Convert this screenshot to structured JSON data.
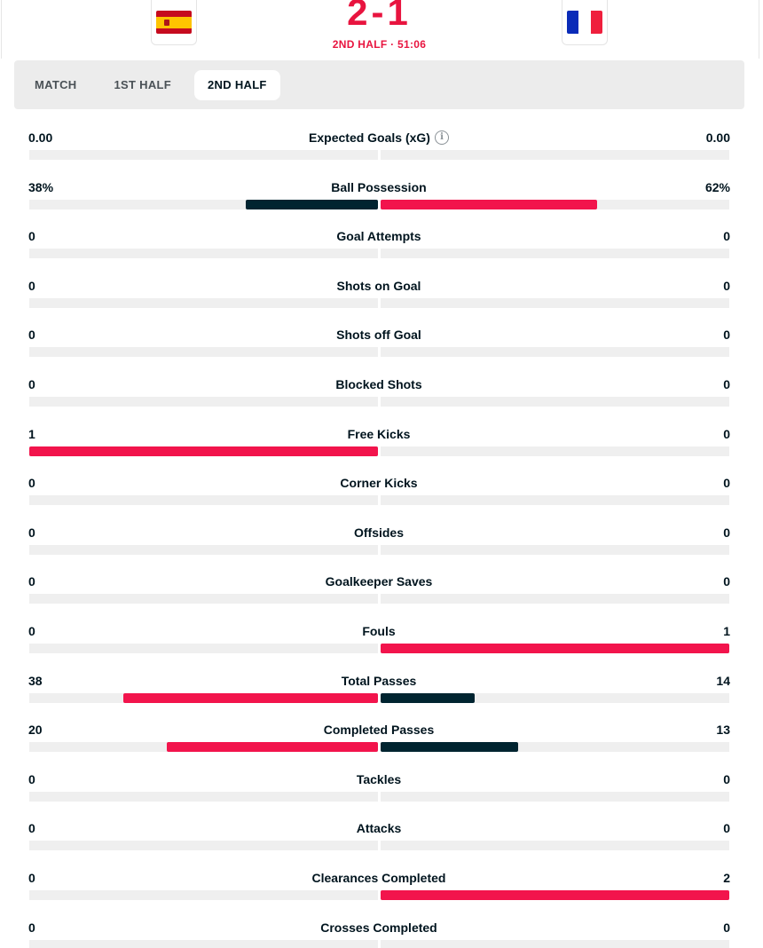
{
  "match": {
    "score": "2-1",
    "period": "2ND HALF · 51:06",
    "home_flag": "spain-flag-icon",
    "away_flag": "france-flag-icon"
  },
  "tabs": [
    {
      "label": "MATCH",
      "active": false
    },
    {
      "label": "1ST HALF",
      "active": false
    },
    {
      "label": "2ND HALF",
      "active": true
    }
  ],
  "colors": {
    "accent_red": "#f2144c",
    "dark_navy": "#002430",
    "track_grey": "#efefef"
  },
  "stats": [
    {
      "label": "Expected Goals (xG)",
      "home": "0.00",
      "away": "0.00",
      "home_share": 0,
      "away_share": 0,
      "home_color": "red",
      "away_color": "red",
      "info_icon": true
    },
    {
      "label": "Ball Possession",
      "home": "38%",
      "away": "62%",
      "home_share": 0.38,
      "away_share": 0.62,
      "home_color": "dark",
      "away_color": "red"
    },
    {
      "label": "Goal Attempts",
      "home": "0",
      "away": "0",
      "home_share": 0,
      "away_share": 0,
      "home_color": "red",
      "away_color": "red"
    },
    {
      "label": "Shots on Goal",
      "home": "0",
      "away": "0",
      "home_share": 0,
      "away_share": 0,
      "home_color": "red",
      "away_color": "red"
    },
    {
      "label": "Shots off Goal",
      "home": "0",
      "away": "0",
      "home_share": 0,
      "away_share": 0,
      "home_color": "red",
      "away_color": "red"
    },
    {
      "label": "Blocked Shots",
      "home": "0",
      "away": "0",
      "home_share": 0,
      "away_share": 0,
      "home_color": "red",
      "away_color": "red"
    },
    {
      "label": "Free Kicks",
      "home": "1",
      "away": "0",
      "home_share": 1,
      "away_share": 0,
      "home_color": "red",
      "away_color": "red"
    },
    {
      "label": "Corner Kicks",
      "home": "0",
      "away": "0",
      "home_share": 0,
      "away_share": 0,
      "home_color": "red",
      "away_color": "red"
    },
    {
      "label": "Offsides",
      "home": "0",
      "away": "0",
      "home_share": 0,
      "away_share": 0,
      "home_color": "red",
      "away_color": "red"
    },
    {
      "label": "Goalkeeper Saves",
      "home": "0",
      "away": "0",
      "home_share": 0,
      "away_share": 0,
      "home_color": "red",
      "away_color": "red"
    },
    {
      "label": "Fouls",
      "home": "0",
      "away": "1",
      "home_share": 0,
      "away_share": 1,
      "home_color": "red",
      "away_color": "red"
    },
    {
      "label": "Total Passes",
      "home": "38",
      "away": "14",
      "home_share": 0.73,
      "away_share": 0.27,
      "home_color": "red",
      "away_color": "dark"
    },
    {
      "label": "Completed Passes",
      "home": "20",
      "away": "13",
      "home_share": 0.606,
      "away_share": 0.394,
      "home_color": "red",
      "away_color": "dark"
    },
    {
      "label": "Tackles",
      "home": "0",
      "away": "0",
      "home_share": 0,
      "away_share": 0,
      "home_color": "red",
      "away_color": "red"
    },
    {
      "label": "Attacks",
      "home": "0",
      "away": "0",
      "home_share": 0,
      "away_share": 0,
      "home_color": "red",
      "away_color": "red"
    },
    {
      "label": "Clearances Completed",
      "home": "0",
      "away": "2",
      "home_share": 0,
      "away_share": 1,
      "home_color": "red",
      "away_color": "red"
    },
    {
      "label": "Crosses Completed",
      "home": "0",
      "away": "0",
      "home_share": 0,
      "away_share": 0,
      "home_color": "red",
      "away_color": "red"
    }
  ]
}
